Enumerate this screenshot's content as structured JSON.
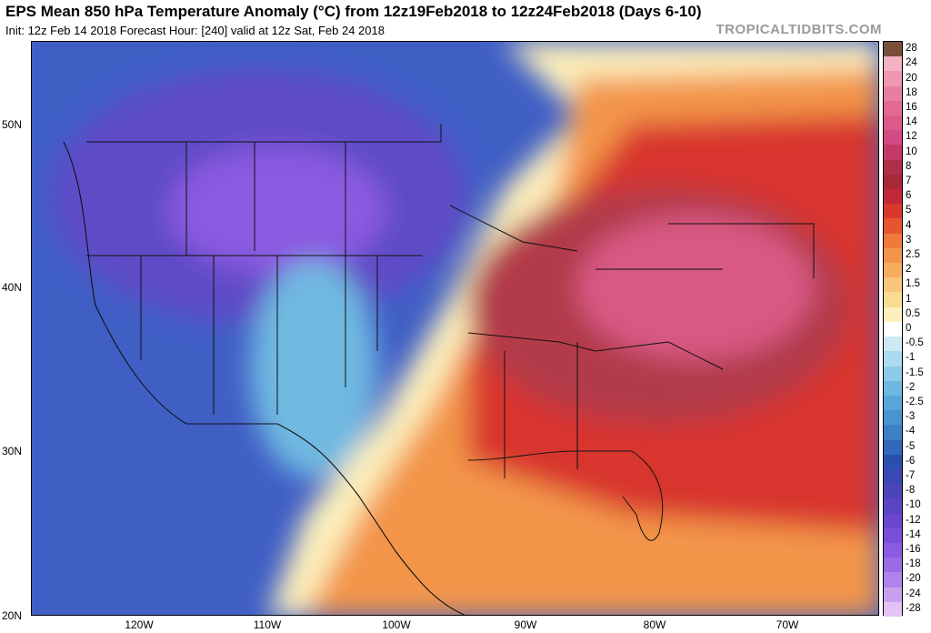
{
  "header": {
    "title": "EPS Mean 850 hPa Temperature Anomaly (°C) from 12z19Feb2018 to 12z24Feb2018 (Days 6-10)",
    "subtitle": "Init: 12z Feb 14 2018   Forecast Hour: [240]   valid at 12z Sat, Feb 24 2018",
    "brand": "TROPICALTIDBITS.COM"
  },
  "map": {
    "lat_labels": [
      "50N",
      "40N",
      "30N",
      "20N"
    ],
    "lon_labels": [
      "120W",
      "110W",
      "100W",
      "90W",
      "80W",
      "70W"
    ],
    "colors": {
      "warm_core": "#b23a48",
      "warm": "#d8362e",
      "mild": "#f3a35a",
      "near_zero": "#ffffff",
      "cool": "#5aa5d8",
      "cold": "#3f5fc5",
      "very_cold": "#7a4fd8"
    }
  },
  "colorbar": {
    "levels": [
      "28",
      "24",
      "20",
      "18",
      "16",
      "14",
      "12",
      "10",
      "8",
      "7",
      "6",
      "5",
      "4",
      "3",
      "2.5",
      "2",
      "1.5",
      "1",
      "0.5",
      "0",
      "-0.5",
      "-1",
      "-1.5",
      "-2",
      "-2.5",
      "-3",
      "-4",
      "-5",
      "-6",
      "-7",
      "-8",
      "-10",
      "-12",
      "-14",
      "-16",
      "-18",
      "-20",
      "-24",
      "-28"
    ],
    "colors": [
      "#7a4f3a",
      "#f3b3c3",
      "#ef98b0",
      "#e97fa0",
      "#e36a92",
      "#dc5a8a",
      "#d44a82",
      "#c33a6a",
      "#b02e4a",
      "#a82838",
      "#c0283a",
      "#d8362e",
      "#e5552e",
      "#ef7a3c",
      "#f3954a",
      "#f6ae5e",
      "#f8c678",
      "#fadb94",
      "#fdf0bc",
      "#ffffff",
      "#cde9f3",
      "#aadbf0",
      "#8ccbe9",
      "#6fb9e1",
      "#59a7d9",
      "#4a93cf",
      "#3f7fc6",
      "#3468bb",
      "#2c4fae",
      "#3b47b2",
      "#4c44b8",
      "#5a44c2",
      "#6a47cc",
      "#7a4fd8",
      "#8a5ae0",
      "#9b6be6",
      "#b083ea",
      "#c9a0ee",
      "#e3c3f3"
    ]
  }
}
